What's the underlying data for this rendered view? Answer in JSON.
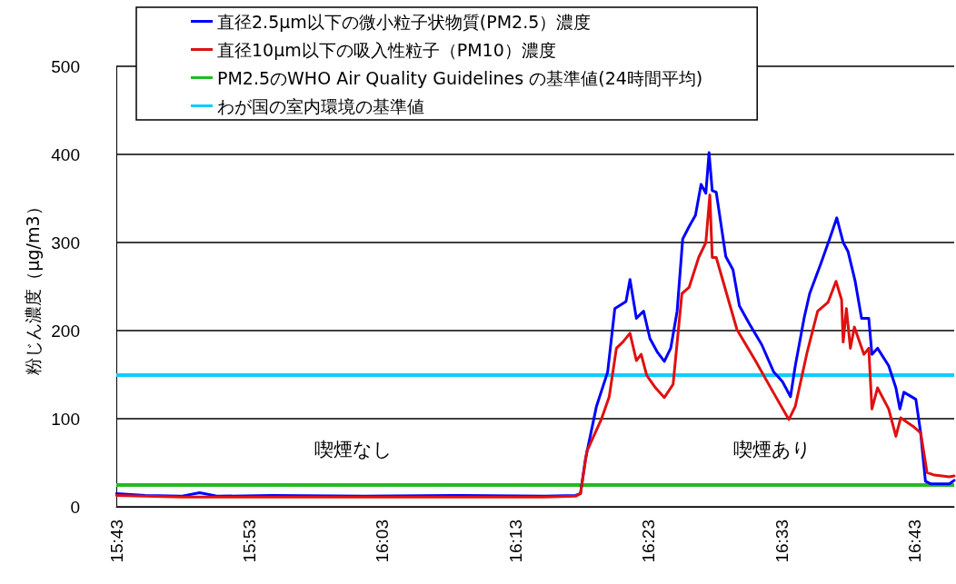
{
  "chart_data": {
    "type": "line",
    "ylabel": "粉じん濃度（μg/m3）",
    "xlim": [
      15.7167,
      16.766
    ],
    "xticks": [
      {
        "value": 15.7167,
        "label": "15:43"
      },
      {
        "value": 15.8833,
        "label": "15:53"
      },
      {
        "value": 16.05,
        "label": "16:03"
      },
      {
        "value": 16.2167,
        "label": "16:13"
      },
      {
        "value": 16.3833,
        "label": "16:23"
      },
      {
        "value": 16.55,
        "label": "16:33"
      },
      {
        "value": 16.7167,
        "label": "16:43"
      }
    ],
    "ylim": [
      0,
      500
    ],
    "yticks": [
      0,
      100,
      200,
      300,
      400,
      500
    ],
    "grid": "y",
    "legend": "top",
    "marker": "none",
    "line_style": "solid",
    "series": [
      {
        "name": "直径2.5μm以下の微小粒子状物質(PM2.5）濃度",
        "color": "#0000ff",
        "x": [
          15.717,
          15.753,
          15.798,
          15.821,
          15.844,
          15.912,
          16.026,
          16.139,
          16.253,
          16.292,
          16.298,
          16.304,
          16.318,
          16.332,
          16.341,
          16.355,
          16.36,
          16.368,
          16.377,
          16.385,
          16.394,
          16.403,
          16.411,
          16.419,
          16.426,
          16.434,
          16.442,
          16.449,
          16.455,
          16.459,
          16.463,
          16.468,
          16.48,
          16.489,
          16.497,
          16.51,
          16.525,
          16.54,
          16.551,
          16.561,
          16.567,
          16.578,
          16.585,
          16.599,
          16.61,
          16.619,
          16.627,
          16.633,
          16.642,
          16.65,
          16.659,
          16.663,
          16.67,
          16.684,
          16.693,
          16.698,
          16.703,
          16.718,
          16.724,
          16.73,
          16.737,
          16.76,
          16.766
        ],
        "values": [
          15,
          13,
          12,
          16,
          12,
          13,
          12,
          13,
          12,
          13,
          15,
          53,
          114,
          153,
          225,
          233,
          258,
          214,
          222,
          191,
          176,
          165,
          180,
          222,
          304,
          318,
          331,
          366,
          356,
          402,
          359,
          357,
          284,
          269,
          228,
          207,
          184,
          153,
          142,
          125,
          160,
          214,
          242,
          276,
          304,
          328,
          300,
          290,
          256,
          214,
          214,
          173,
          180,
          160,
          135,
          111,
          130,
          122,
          84,
          29,
          26,
          26,
          30
        ]
      },
      {
        "name": "直径10μm以下の吸入性粒子（PM10）濃度",
        "color": "#e01010",
        "x": [
          15.717,
          15.798,
          15.912,
          16.026,
          16.139,
          16.253,
          16.292,
          16.298,
          16.306,
          16.324,
          16.334,
          16.343,
          16.351,
          16.36,
          16.368,
          16.374,
          16.381,
          16.392,
          16.403,
          16.414,
          16.425,
          16.434,
          16.446,
          16.455,
          16.46,
          16.463,
          16.468,
          16.494,
          16.517,
          16.54,
          16.559,
          16.567,
          16.582,
          16.595,
          16.608,
          16.618,
          16.625,
          16.627,
          16.631,
          16.636,
          16.641,
          16.653,
          16.659,
          16.663,
          16.67,
          16.684,
          16.693,
          16.699,
          16.715,
          16.724,
          16.732,
          16.741,
          16.76,
          16.766
        ],
        "values": [
          13,
          11,
          11,
          11,
          11,
          11,
          12,
          15,
          63,
          99,
          125,
          180,
          187,
          197,
          166,
          173,
          149,
          135,
          124,
          139,
          242,
          249,
          283,
          300,
          354,
          283,
          283,
          201,
          166,
          129,
          99,
          114,
          176,
          222,
          232,
          256,
          235,
          187,
          225,
          180,
          204,
          173,
          180,
          111,
          135,
          111,
          80,
          101,
          91,
          84,
          39,
          36,
          34,
          35
        ]
      }
    ],
    "ref_lines": [
      {
        "axis": "y",
        "value": 25,
        "label": "PM2.5のWHO Air Quality Guidelines の基準値(24時間平均)",
        "color": "#22bb22"
      },
      {
        "axis": "y",
        "value": 150,
        "label": "わが国の室内環境の基準値",
        "color": "#11ccff"
      }
    ],
    "annotations": [
      "喫煙なし",
      "喫煙あり"
    ]
  }
}
